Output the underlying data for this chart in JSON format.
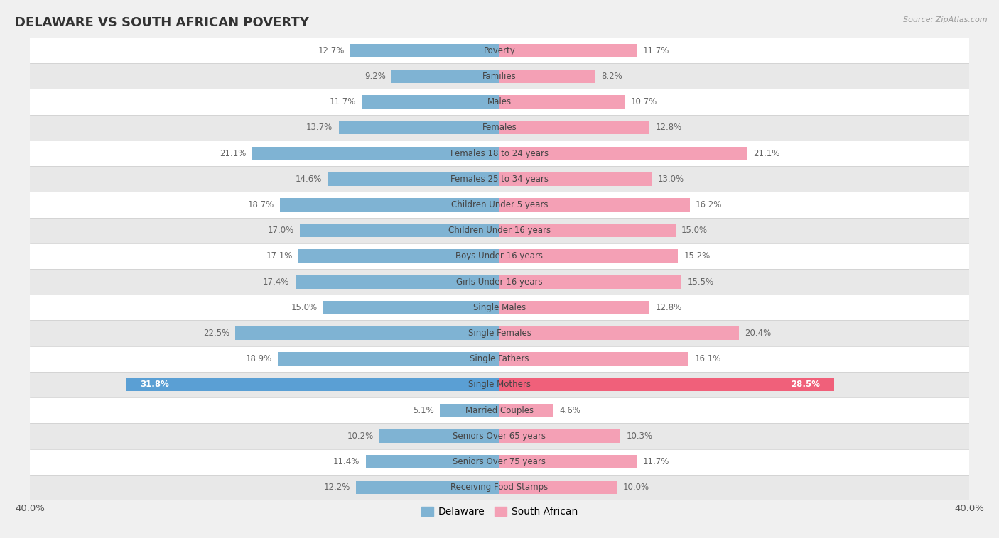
{
  "title": "DELAWARE VS SOUTH AFRICAN POVERTY",
  "source": "Source: ZipAtlas.com",
  "categories": [
    "Poverty",
    "Families",
    "Males",
    "Females",
    "Females 18 to 24 years",
    "Females 25 to 34 years",
    "Children Under 5 years",
    "Children Under 16 years",
    "Boys Under 16 years",
    "Girls Under 16 years",
    "Single Males",
    "Single Females",
    "Single Fathers",
    "Single Mothers",
    "Married Couples",
    "Seniors Over 65 years",
    "Seniors Over 75 years",
    "Receiving Food Stamps"
  ],
  "delaware": [
    12.7,
    9.2,
    11.7,
    13.7,
    21.1,
    14.6,
    18.7,
    17.0,
    17.1,
    17.4,
    15.0,
    22.5,
    18.9,
    31.8,
    5.1,
    10.2,
    11.4,
    12.2
  ],
  "south_african": [
    11.7,
    8.2,
    10.7,
    12.8,
    21.1,
    13.0,
    16.2,
    15.0,
    15.2,
    15.5,
    12.8,
    20.4,
    16.1,
    28.5,
    4.6,
    10.3,
    11.7,
    10.0
  ],
  "delaware_color": "#7fb3d3",
  "south_african_color": "#f4a0b5",
  "single_mothers_delaware_color": "#5a9fd4",
  "single_mothers_sa_color": "#f0607a",
  "background_color": "#f0f0f0",
  "row_bg_white": "#ffffff",
  "row_bg_gray": "#e8e8e8",
  "max_val": 40.0,
  "bar_height": 0.52,
  "title_fontsize": 13,
  "label_fontsize": 8.5,
  "value_fontsize": 8.5,
  "source_fontsize": 8
}
